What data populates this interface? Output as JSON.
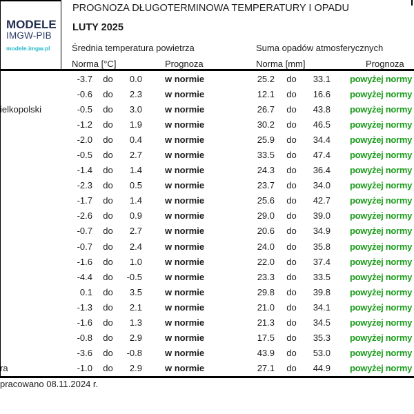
{
  "logo": {
    "line1": "MODELE",
    "line2": "IMGW-PIB",
    "url": "modele.imgw.pl"
  },
  "footer": {
    "prepared": "pracowano 08.11.2024 r."
  },
  "colors": {
    "forecast_green": "#1a9c1a",
    "navy": "#222d52",
    "navy2": "#2e3a63",
    "cyan": "#25b8ca",
    "text": "#1c1c1c",
    "border": "#000000"
  },
  "chart_data": {
    "type": "table",
    "title": "PROGNOZA DŁUGOTERMINOWA TEMPERATURY I OPADU",
    "subtitle": "LUTY 2025",
    "column_groups": [
      "Średnia temperatura powietrza",
      "Suma opadów atmosferycznych"
    ],
    "sub_columns": [
      "Norma [°C]",
      "Prognoza",
      "Norma [mm]",
      "Prognoza"
    ],
    "range_word": "do",
    "temp_forecast_label": "w normie",
    "precip_forecast_label": "powyżej normy",
    "rows": [
      {
        "city": "",
        "t_min": -3.7,
        "t_max": 0.0,
        "p_min": 25.2,
        "p_max": 33.1
      },
      {
        "city": "",
        "t_min": -0.6,
        "t_max": 2.3,
        "p_min": 12.1,
        "p_max": 16.6
      },
      {
        "city": "ielkopolski",
        "t_min": -0.5,
        "t_max": 3.0,
        "p_min": 26.7,
        "p_max": 43.8
      },
      {
        "city": "",
        "t_min": -1.2,
        "t_max": 1.9,
        "p_min": 30.2,
        "p_max": 46.5
      },
      {
        "city": "",
        "t_min": -2.0,
        "t_max": 0.4,
        "p_min": 25.9,
        "p_max": 34.4
      },
      {
        "city": "",
        "t_min": -0.5,
        "t_max": 2.7,
        "p_min": 33.5,
        "p_max": 47.4
      },
      {
        "city": "",
        "t_min": -1.4,
        "t_max": 1.4,
        "p_min": 24.3,
        "p_max": 36.4
      },
      {
        "city": "",
        "t_min": -2.3,
        "t_max": 0.5,
        "p_min": 23.7,
        "p_max": 34.0
      },
      {
        "city": "",
        "t_min": -1.7,
        "t_max": 1.4,
        "p_min": 25.6,
        "p_max": 42.7
      },
      {
        "city": "",
        "t_min": -2.6,
        "t_max": 0.9,
        "p_min": 29.0,
        "p_max": 39.0
      },
      {
        "city": "",
        "t_min": -0.7,
        "t_max": 2.7,
        "p_min": 20.6,
        "p_max": 34.9
      },
      {
        "city": "",
        "t_min": -0.7,
        "t_max": 2.4,
        "p_min": 24.0,
        "p_max": 35.8
      },
      {
        "city": "",
        "t_min": -1.6,
        "t_max": 1.0,
        "p_min": 22.0,
        "p_max": 37.4
      },
      {
        "city": "",
        "t_min": -4.4,
        "t_max": -0.5,
        "p_min": 23.3,
        "p_max": 33.5
      },
      {
        "city": "",
        "t_min": 0.1,
        "t_max": 3.5,
        "p_min": 29.8,
        "p_max": 39.8
      },
      {
        "city": "",
        "t_min": -1.3,
        "t_max": 2.1,
        "p_min": 21.0,
        "p_max": 34.1
      },
      {
        "city": "",
        "t_min": -1.6,
        "t_max": 1.3,
        "p_min": 21.3,
        "p_max": 34.5
      },
      {
        "city": "",
        "t_min": -0.8,
        "t_max": 2.9,
        "p_min": 17.5,
        "p_max": 35.3
      },
      {
        "city": "",
        "t_min": -3.6,
        "t_max": -0.8,
        "p_min": 43.9,
        "p_max": 53.0
      },
      {
        "city": "ra",
        "t_min": -1.0,
        "t_max": 2.9,
        "p_min": 27.1,
        "p_max": 44.9
      }
    ]
  }
}
